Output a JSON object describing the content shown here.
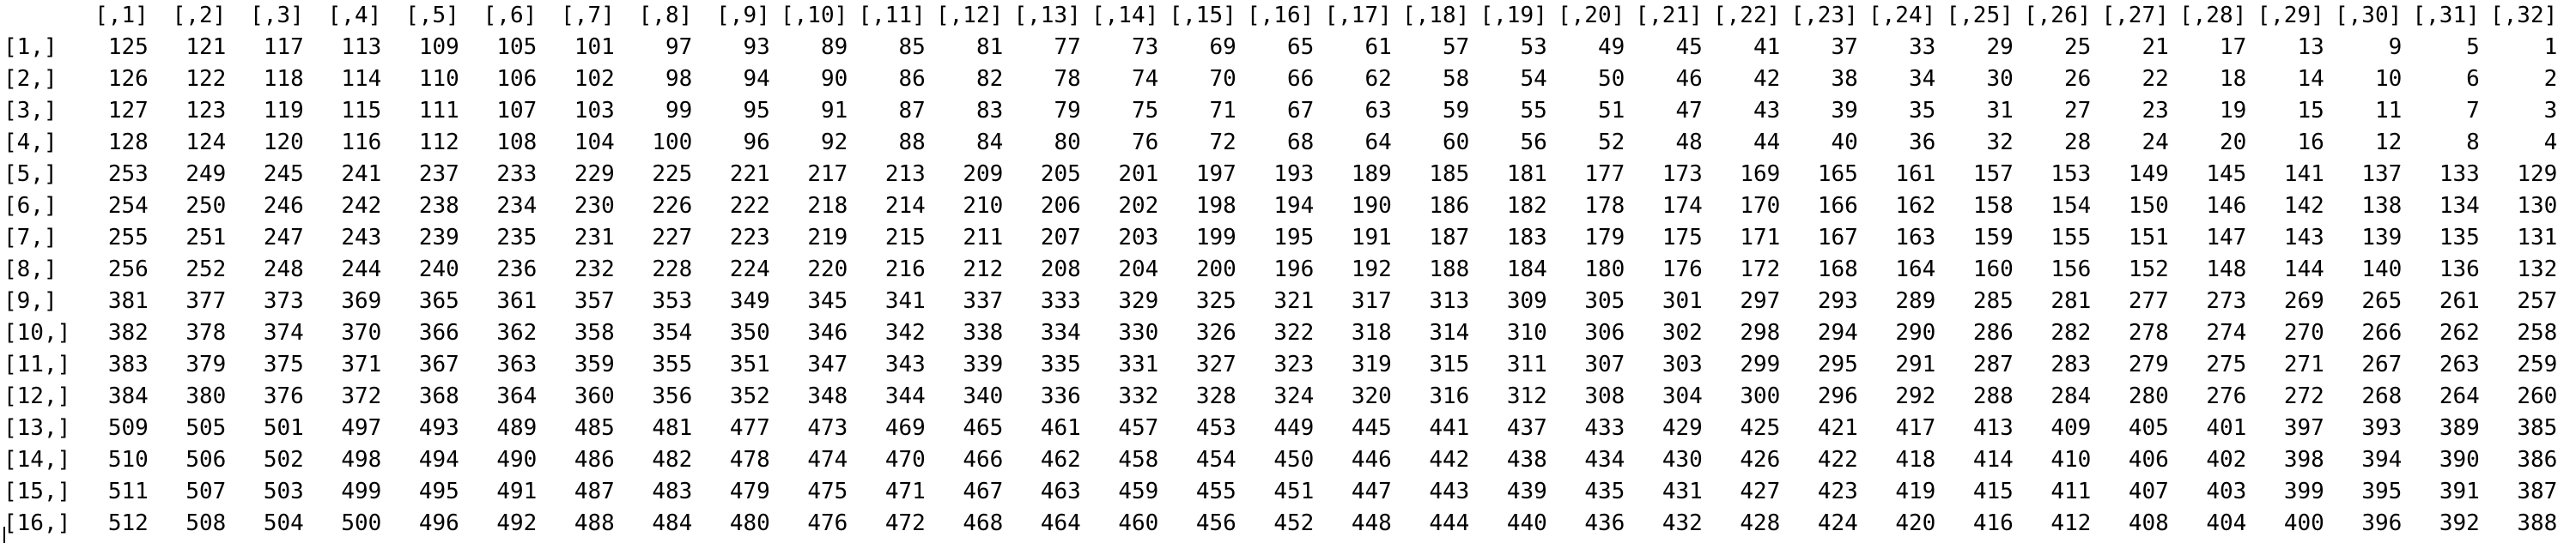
{
  "console": {
    "col_headers": [
      "[,1]",
      "[,2]",
      "[,3]",
      "[,4]",
      "[,5]",
      "[,6]",
      "[,7]",
      "[,8]",
      "[,9]",
      "[,10]",
      "[,11]",
      "[,12]",
      "[,13]",
      "[,14]",
      "[,15]",
      "[,16]",
      "[,17]",
      "[,18]",
      "[,19]",
      "[,20]",
      "[,21]",
      "[,22]",
      "[,23]",
      "[,24]",
      "[,25]",
      "[,26]",
      "[,27]",
      "[,28]",
      "[,29]",
      "[,30]",
      "[,31]",
      "[,32]"
    ],
    "rows": [
      {
        "label": "[1,]",
        "values": [
          "125",
          "121",
          "117",
          "113",
          "109",
          "105",
          "101",
          "97",
          "93",
          "89",
          "85",
          "81",
          "77",
          "73",
          "69",
          "65",
          "61",
          "57",
          "53",
          "49",
          "45",
          "41",
          "37",
          "33",
          "29",
          "25",
          "21",
          "17",
          "13",
          "9",
          "5",
          "1"
        ]
      },
      {
        "label": "[2,]",
        "values": [
          "126",
          "122",
          "118",
          "114",
          "110",
          "106",
          "102",
          "98",
          "94",
          "90",
          "86",
          "82",
          "78",
          "74",
          "70",
          "66",
          "62",
          "58",
          "54",
          "50",
          "46",
          "42",
          "38",
          "34",
          "30",
          "26",
          "22",
          "18",
          "14",
          "10",
          "6",
          "2"
        ]
      },
      {
        "label": "[3,]",
        "values": [
          "127",
          "123",
          "119",
          "115",
          "111",
          "107",
          "103",
          "99",
          "95",
          "91",
          "87",
          "83",
          "79",
          "75",
          "71",
          "67",
          "63",
          "59",
          "55",
          "51",
          "47",
          "43",
          "39",
          "35",
          "31",
          "27",
          "23",
          "19",
          "15",
          "11",
          "7",
          "3"
        ]
      },
      {
        "label": "[4,]",
        "values": [
          "128",
          "124",
          "120",
          "116",
          "112",
          "108",
          "104",
          "100",
          "96",
          "92",
          "88",
          "84",
          "80",
          "76",
          "72",
          "68",
          "64",
          "60",
          "56",
          "52",
          "48",
          "44",
          "40",
          "36",
          "32",
          "28",
          "24",
          "20",
          "16",
          "12",
          "8",
          "4"
        ]
      },
      {
        "label": "[5,]",
        "values": [
          "253",
          "249",
          "245",
          "241",
          "237",
          "233",
          "229",
          "225",
          "221",
          "217",
          "213",
          "209",
          "205",
          "201",
          "197",
          "193",
          "189",
          "185",
          "181",
          "177",
          "173",
          "169",
          "165",
          "161",
          "157",
          "153",
          "149",
          "145",
          "141",
          "137",
          "133",
          "129"
        ]
      },
      {
        "label": "[6,]",
        "values": [
          "254",
          "250",
          "246",
          "242",
          "238",
          "234",
          "230",
          "226",
          "222",
          "218",
          "214",
          "210",
          "206",
          "202",
          "198",
          "194",
          "190",
          "186",
          "182",
          "178",
          "174",
          "170",
          "166",
          "162",
          "158",
          "154",
          "150",
          "146",
          "142",
          "138",
          "134",
          "130"
        ]
      },
      {
        "label": "[7,]",
        "values": [
          "255",
          "251",
          "247",
          "243",
          "239",
          "235",
          "231",
          "227",
          "223",
          "219",
          "215",
          "211",
          "207",
          "203",
          "199",
          "195",
          "191",
          "187",
          "183",
          "179",
          "175",
          "171",
          "167",
          "163",
          "159",
          "155",
          "151",
          "147",
          "143",
          "139",
          "135",
          "131"
        ]
      },
      {
        "label": "[8,]",
        "values": [
          "256",
          "252",
          "248",
          "244",
          "240",
          "236",
          "232",
          "228",
          "224",
          "220",
          "216",
          "212",
          "208",
          "204",
          "200",
          "196",
          "192",
          "188",
          "184",
          "180",
          "176",
          "172",
          "168",
          "164",
          "160",
          "156",
          "152",
          "148",
          "144",
          "140",
          "136",
          "132"
        ]
      },
      {
        "label": "[9,]",
        "values": [
          "381",
          "377",
          "373",
          "369",
          "365",
          "361",
          "357",
          "353",
          "349",
          "345",
          "341",
          "337",
          "333",
          "329",
          "325",
          "321",
          "317",
          "313",
          "309",
          "305",
          "301",
          "297",
          "293",
          "289",
          "285",
          "281",
          "277",
          "273",
          "269",
          "265",
          "261",
          "257"
        ]
      },
      {
        "label": "[10,]",
        "values": [
          "382",
          "378",
          "374",
          "370",
          "366",
          "362",
          "358",
          "354",
          "350",
          "346",
          "342",
          "338",
          "334",
          "330",
          "326",
          "322",
          "318",
          "314",
          "310",
          "306",
          "302",
          "298",
          "294",
          "290",
          "286",
          "282",
          "278",
          "274",
          "270",
          "266",
          "262",
          "258"
        ]
      },
      {
        "label": "[11,]",
        "values": [
          "383",
          "379",
          "375",
          "371",
          "367",
          "363",
          "359",
          "355",
          "351",
          "347",
          "343",
          "339",
          "335",
          "331",
          "327",
          "323",
          "319",
          "315",
          "311",
          "307",
          "303",
          "299",
          "295",
          "291",
          "287",
          "283",
          "279",
          "275",
          "271",
          "267",
          "263",
          "259"
        ]
      },
      {
        "label": "[12,]",
        "values": [
          "384",
          "380",
          "376",
          "372",
          "368",
          "364",
          "360",
          "356",
          "352",
          "348",
          "344",
          "340",
          "336",
          "332",
          "328",
          "324",
          "320",
          "316",
          "312",
          "308",
          "304",
          "300",
          "296",
          "292",
          "288",
          "284",
          "280",
          "276",
          "272",
          "268",
          "264",
          "260"
        ]
      },
      {
        "label": "[13,]",
        "values": [
          "509",
          "505",
          "501",
          "497",
          "493",
          "489",
          "485",
          "481",
          "477",
          "473",
          "469",
          "465",
          "461",
          "457",
          "453",
          "449",
          "445",
          "441",
          "437",
          "433",
          "429",
          "425",
          "421",
          "417",
          "413",
          "409",
          "405",
          "401",
          "397",
          "393",
          "389",
          "385"
        ]
      },
      {
        "label": "[14,]",
        "values": [
          "510",
          "506",
          "502",
          "498",
          "494",
          "490",
          "486",
          "482",
          "478",
          "474",
          "470",
          "466",
          "462",
          "458",
          "454",
          "450",
          "446",
          "442",
          "438",
          "434",
          "430",
          "426",
          "422",
          "418",
          "414",
          "410",
          "406",
          "402",
          "398",
          "394",
          "390",
          "386"
        ]
      },
      {
        "label": "[15,]",
        "values": [
          "511",
          "507",
          "503",
          "499",
          "495",
          "491",
          "487",
          "483",
          "479",
          "475",
          "471",
          "467",
          "463",
          "459",
          "455",
          "451",
          "447",
          "443",
          "439",
          "435",
          "431",
          "427",
          "423",
          "419",
          "415",
          "411",
          "407",
          "403",
          "399",
          "395",
          "391",
          "387"
        ]
      },
      {
        "label": "[16,]",
        "values": [
          "512",
          "508",
          "504",
          "500",
          "496",
          "492",
          "488",
          "484",
          "480",
          "476",
          "472",
          "468",
          "464",
          "460",
          "456",
          "452",
          "448",
          "444",
          "440",
          "436",
          "432",
          "428",
          "424",
          "420",
          "416",
          "412",
          "408",
          "404",
          "400",
          "396",
          "392",
          "388"
        ]
      }
    ]
  }
}
